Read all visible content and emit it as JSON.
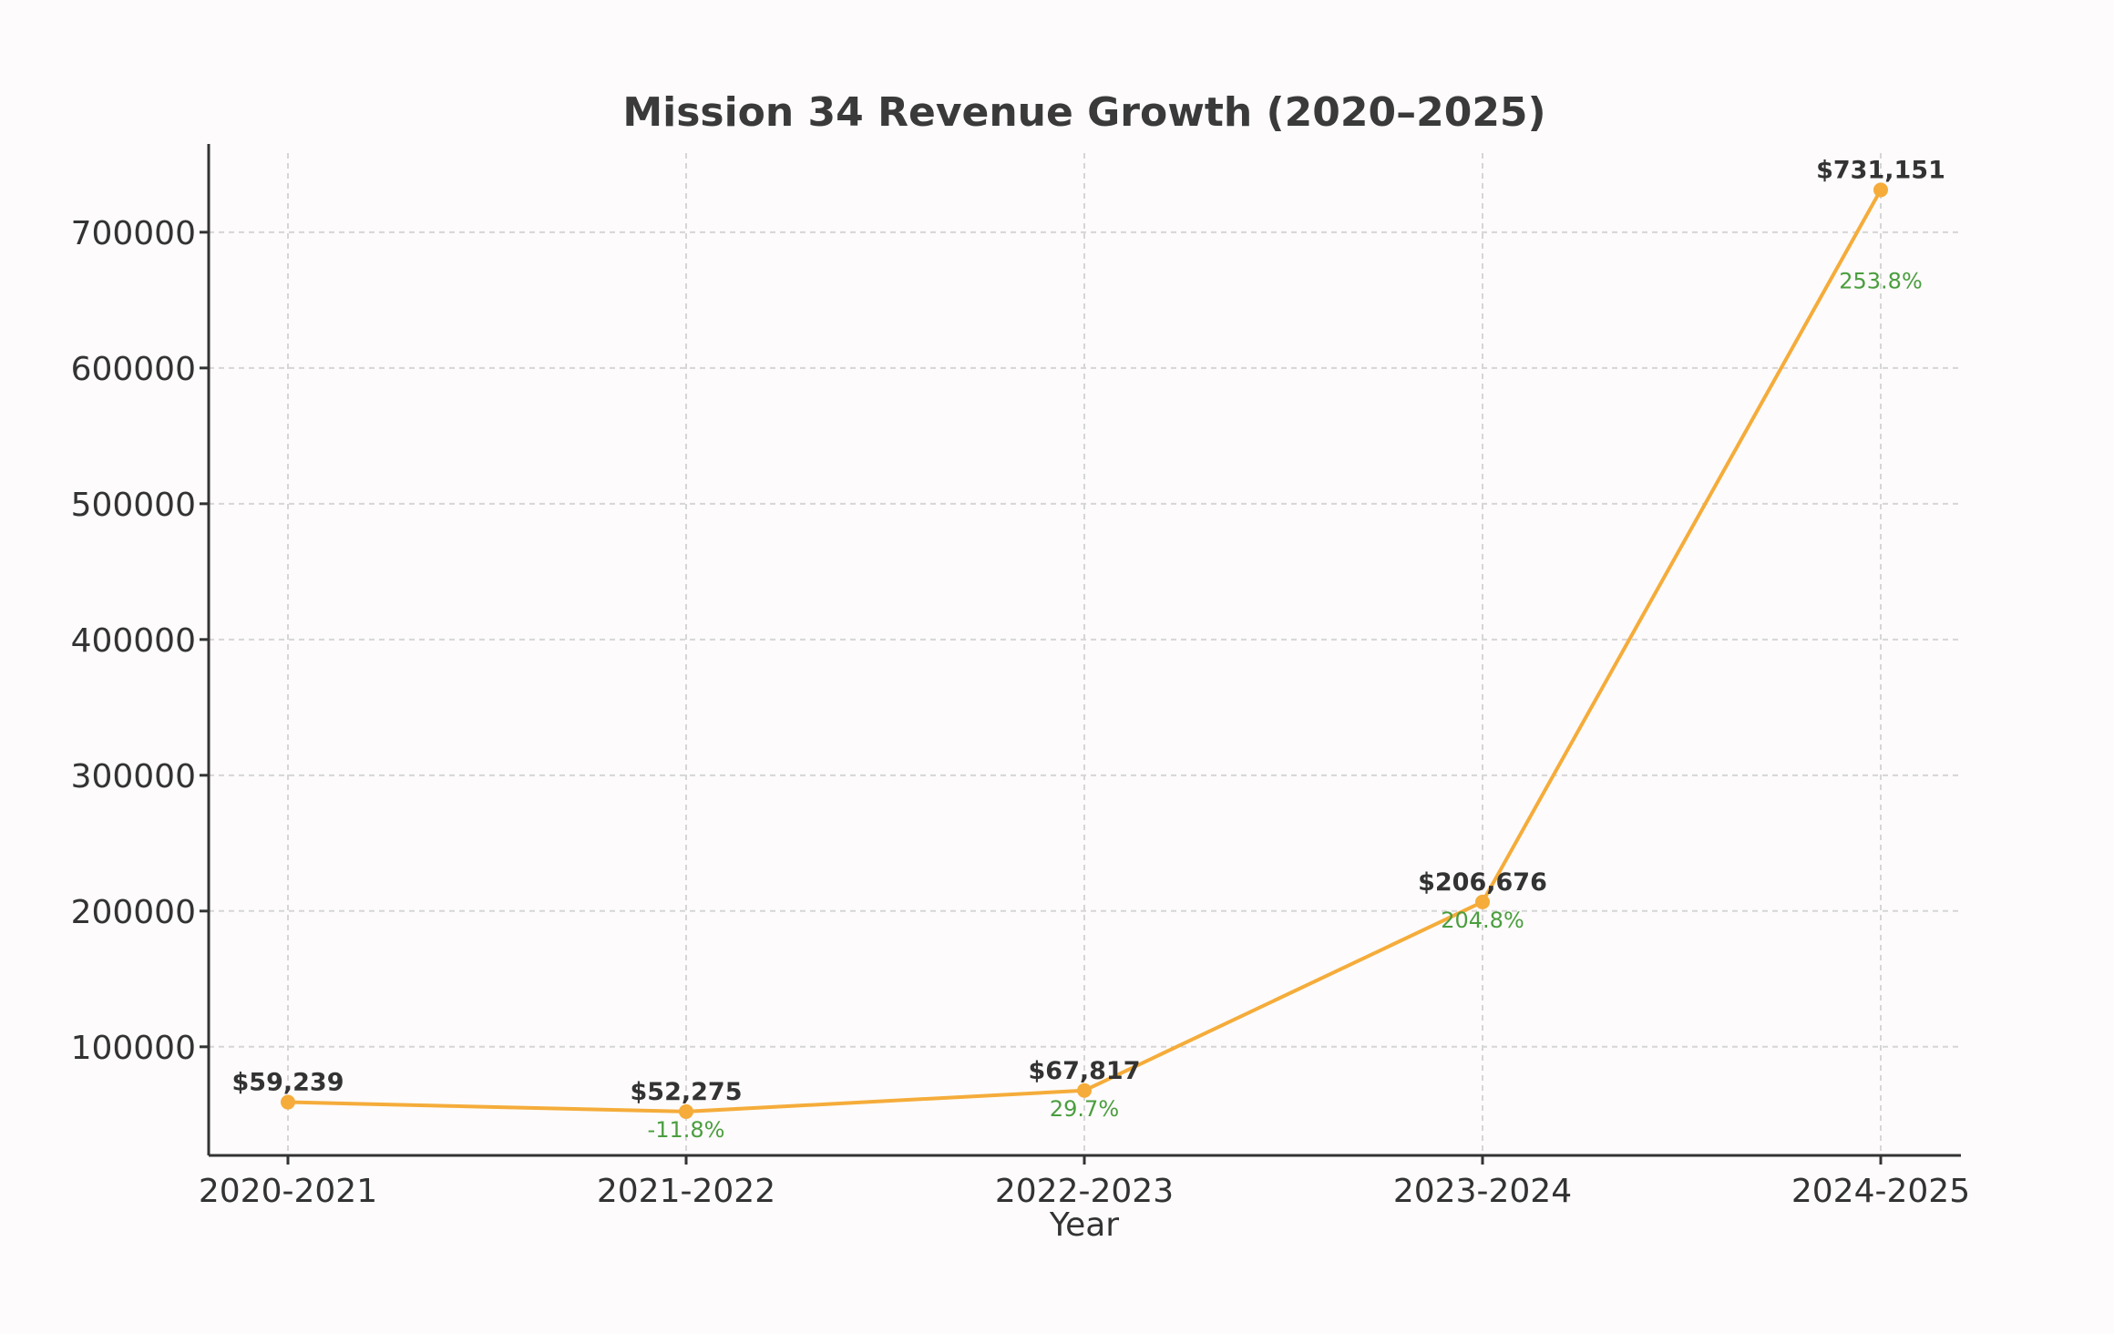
{
  "chart_data": {
    "type": "line",
    "title": "Mission 34 Revenue Growth (2020–2025)",
    "xlabel": "Year",
    "ylabel": "",
    "categories": [
      "2020-2021",
      "2021-2022",
      "2022-2023",
      "2023-2024",
      "2024-2025"
    ],
    "series": [
      {
        "values": [
          59239,
          52275,
          67817,
          206676,
          731151
        ],
        "value_labels": [
          "$59,239",
          "$52,275",
          "$67,817",
          "$206,676",
          "$731,151"
        ],
        "growth_labels": [
          "",
          "-11.8%",
          "29.7%",
          "204.8%",
          "253.8%"
        ],
        "color": "#f5ac3a"
      }
    ],
    "growth_color": "#4a9e3f",
    "ylim": [
      20000,
      765000
    ],
    "yticks": [
      100000,
      200000,
      300000,
      400000,
      500000,
      600000,
      700000
    ],
    "ytick_labels": [
      "100000",
      "200000",
      "300000",
      "400000",
      "500000",
      "600000",
      "700000"
    ],
    "grid": true,
    "legend": "none"
  }
}
